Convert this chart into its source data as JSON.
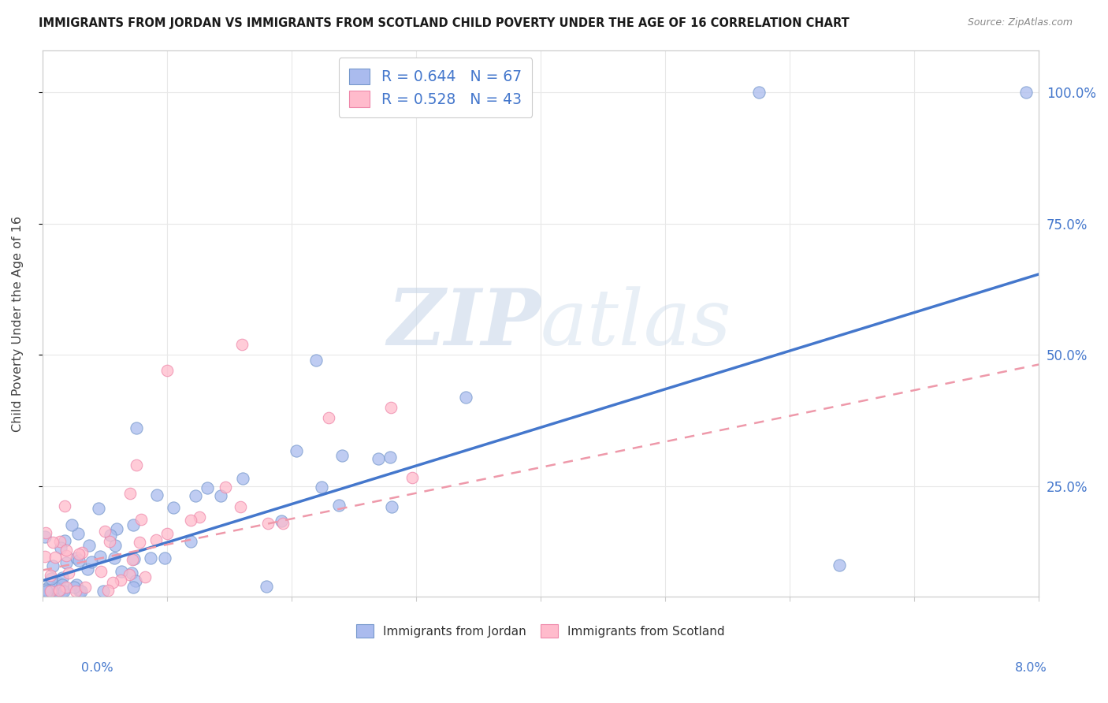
{
  "title": "IMMIGRANTS FROM JORDAN VS IMMIGRANTS FROM SCOTLAND CHILD POVERTY UNDER THE AGE OF 16 CORRELATION CHART",
  "source": "Source: ZipAtlas.com",
  "ylabel": "Child Poverty Under the Age of 16",
  "legend1_label": "R = 0.644   N = 67",
  "legend2_label": "R = 0.528   N = 43",
  "legend3_label": "Immigrants from Jordan",
  "legend4_label": "Immigrants from Scotland",
  "jordan_color": "#aabbee",
  "jordan_edge_color": "#7799cc",
  "scotland_color": "#ffbbcc",
  "scotland_edge_color": "#ee88aa",
  "jordan_line_color": "#4477cc",
  "scotland_line_color": "#ee99aa",
  "right_tick_color": "#4477cc",
  "xmin": 0.0,
  "xmax": 0.08,
  "ymin": 0.04,
  "ymax": 1.08,
  "jordan_intercept": 0.07,
  "jordan_slope": 7.3,
  "scotland_intercept": 0.09,
  "scotland_slope": 4.9,
  "watermark_text": "ZIPatlas",
  "background_color": "#ffffff",
  "grid_color": "#e8e8e8"
}
